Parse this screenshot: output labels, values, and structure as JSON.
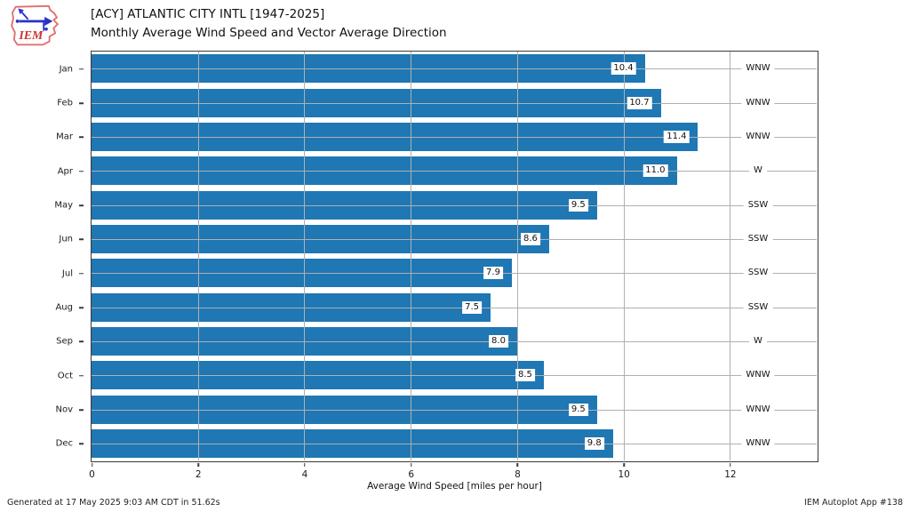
{
  "header": {
    "title_line1": "[ACY] ATLANTIC CITY INTL [1947-2025]",
    "title_line2": "Monthly Average Wind Speed and Vector Average Direction",
    "logo_text": "IEM"
  },
  "chart_data": {
    "type": "bar",
    "orientation": "horizontal",
    "title": "[ACY] ATLANTIC CITY INTL [1947-2025] Monthly Average Wind Speed and Vector Average Direction",
    "categories": [
      "Jan",
      "Feb",
      "Mar",
      "Apr",
      "May",
      "Jun",
      "Jul",
      "Aug",
      "Sep",
      "Oct",
      "Nov",
      "Dec"
    ],
    "values": [
      10.4,
      10.7,
      11.4,
      11.0,
      9.5,
      8.6,
      7.9,
      7.5,
      8.0,
      8.5,
      9.5,
      9.8
    ],
    "directions": [
      "WNW",
      "WNW",
      "WNW",
      "W",
      "SSW",
      "SSW",
      "SSW",
      "SSW",
      "W",
      "WNW",
      "WNW",
      "WNW"
    ],
    "xlabel": "Average Wind Speed [miles per hour]",
    "ylabel": "",
    "xticks": [
      0,
      2,
      4,
      6,
      8,
      10,
      12
    ],
    "xlim": [
      0,
      13.63
    ],
    "grid": true,
    "legend": "none",
    "colors": {
      "bar": "#1f77b4",
      "grid": "#b0b0b0",
      "spine": "#3a3a3a",
      "logo_red": "#cc3333",
      "logo_outline": "#e06e6e",
      "logo_blue": "#2a32c8"
    }
  },
  "footer": {
    "generated": "Generated at 17 May 2025 9:03 AM CDT in 51.62s",
    "app": "IEM Autoplot App #138"
  }
}
